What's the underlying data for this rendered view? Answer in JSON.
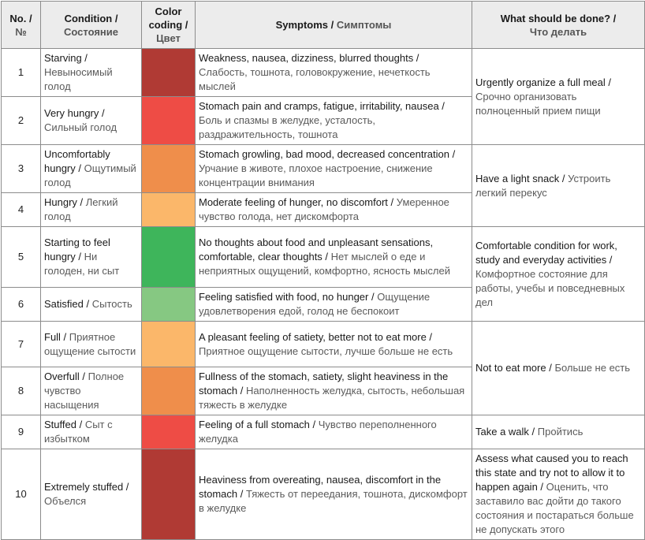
{
  "header": {
    "no_en": "No. /",
    "no_ru": "№",
    "condition_en": "Condition /",
    "condition_ru": "Состояние",
    "color_en": "Color coding /",
    "color_ru": "Цвет",
    "symptoms_en": "Symptoms /",
    "symptoms_ru": "Симптомы",
    "todo_en": "What should be done? /",
    "todo_ru": "Что делать"
  },
  "rows": [
    {
      "num": "1",
      "cond_en": "Starving /",
      "cond_ru": "Невыносимый голод",
      "color": "#b03a34",
      "sym_en": "Weakness, nausea, dizziness, blurred thoughts /",
      "sym_ru": "Слабость, тошнота, головокружение, нечеткость мыслей"
    },
    {
      "num": "2",
      "cond_en": "Very hungry /",
      "cond_ru": "Сильный голод",
      "color": "#ee4c45",
      "sym_en": "Stomach pain and cramps, fatigue, irritability, nausea /",
      "sym_ru": "Боль и спазмы в желудке, усталость, раздражительность, тошнота"
    },
    {
      "num": "3",
      "cond_en": "Uncomfortably hungry /",
      "cond_ru": "Ощутимый голод",
      "color": "#ef8e4b",
      "sym_en": "Stomach growling, bad mood, decreased concentration /",
      "sym_ru": "Урчание в животе, плохое настроение, снижение концентрации внимания"
    },
    {
      "num": "4",
      "cond_en": "Hungry /",
      "cond_ru": "Легкий голод",
      "color": "#fbb76a",
      "sym_en": "Moderate feeling of hunger, no discomfort /",
      "sym_ru": "Умеренное чувство голода, нет дискомфорта"
    },
    {
      "num": "5",
      "cond_en": "Starting to feel hungry /",
      "cond_ru": "Ни голоден, ни сыт",
      "color": "#3eb55b",
      "sym_en": "No thoughts about food and unpleasant sensations, comfortable, clear thoughts /",
      "sym_ru": "Нет мыслей о еде и неприятных ощущений, комфортно, ясность мыслей"
    },
    {
      "num": "6",
      "cond_en": "Satisfied /",
      "cond_ru": "Сытость",
      "color": "#86c882",
      "sym_en": "Feeling satisfied with food, no hunger /",
      "sym_ru": "Ощущение удовлетворения едой, голод не беспокоит"
    },
    {
      "num": "7",
      "cond_en": "Full /",
      "cond_ru": "Приятное ощущение сытости",
      "color": "#fbb76a",
      "sym_en": "A pleasant feeling of satiety, better not to eat more /",
      "sym_ru": "Приятное ощущение сытости, лучше больше не есть"
    },
    {
      "num": "8",
      "cond_en": "Overfull /",
      "cond_ru": "Полное чувство насыщения",
      "color": "#ef8e4b",
      "sym_en": "Fullness of the stomach, satiety, slight heaviness in the stomach /",
      "sym_ru": "Наполненность желудка, сытость, небольшая тяжесть в желудке"
    },
    {
      "num": "9",
      "cond_en": "Stuffed /",
      "cond_ru": "Сыт с избытком",
      "color": "#ee4c45",
      "sym_en": "Feeling of a full stomach /",
      "sym_ru": "Чувство переполненного желудка"
    },
    {
      "num": "10",
      "cond_en": "Extremely stuffed /",
      "cond_ru": "Объелся",
      "color": "#b03a34",
      "sym_en": "Heaviness from overeating, nausea, discomfort in the stomach /",
      "sym_ru": "Тяжесть от переедания, тошнота, дискомфорт в желудке"
    }
  ],
  "actions": [
    {
      "en": "Urgently organize a full meal /",
      "ru": "Срочно организовать полноценный прием пищи"
    },
    {
      "en": "Have a light snack /",
      "ru": "Устроить легкий перекус"
    },
    {
      "en": "Comfortable condition for work, study and everyday activities /",
      "ru": "Комфортное состояние для работы, учебы и повседневных дел"
    },
    {
      "en": "Not to eat more /",
      "ru": "Больше не есть"
    },
    {
      "en": "Take a walk /",
      "ru": "Пройтись"
    },
    {
      "en": "Assess what caused you to reach this state and try not to allow it to happen again /",
      "ru": "Оценить, что заставило вас дойти до такого состояния и постараться больше не допускать этого"
    }
  ]
}
